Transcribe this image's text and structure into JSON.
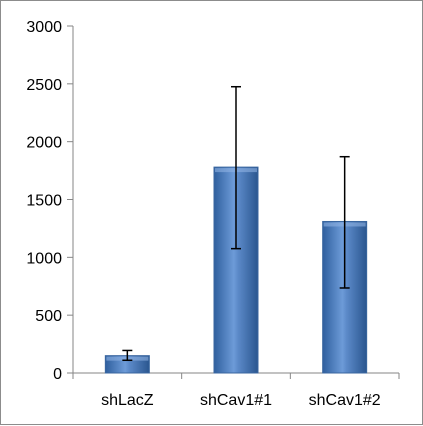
{
  "chart_data": {
    "type": "bar",
    "title": "",
    "xlabel": "",
    "ylabel": "",
    "ylim": [
      0,
      3000
    ],
    "y_ticks": [
      0,
      500,
      1000,
      1500,
      2000,
      2500,
      3000
    ],
    "y_tick_labels": [
      "0",
      "500",
      "1000",
      "1500",
      "2000",
      "2500",
      "3000"
    ],
    "categories": [
      "shLacZ",
      "shCav1#1",
      "shCav1#2"
    ],
    "values": [
      150,
      1780,
      1310
    ],
    "error_bars": [
      {
        "low": 110,
        "high": 195
      },
      {
        "low": 1075,
        "high": 2475
      },
      {
        "low": 735,
        "high": 1870
      }
    ],
    "bar_color": "#4f81bd",
    "grid": false,
    "legend": "none"
  }
}
